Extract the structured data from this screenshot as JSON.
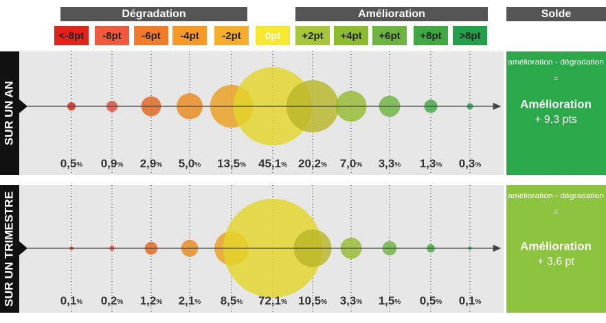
{
  "header": {
    "groups": [
      "Dégradation",
      "Amélioration",
      "Solde"
    ]
  },
  "categories": [
    "<-8pt",
    "-8pt",
    "-6pt",
    "-4pt",
    "-2pt",
    "0pt",
    "+2pt",
    "+4pt",
    "+6pt",
    "+8pt",
    ">8pt"
  ],
  "category_colors": [
    "#e2231a",
    "#ef5a3c",
    "#f07b2b",
    "#f59a24",
    "#f6ad2b",
    "#f6e82e",
    "#a8c63a",
    "#8dbb2f",
    "#6cb33f",
    "#3fa843",
    "#22a04b"
  ],
  "bubble_colors": [
    "#d4221b",
    "#e4493a",
    "#e0661f",
    "#e98a1c",
    "#e9a01f",
    "#e3d62a",
    "#b9b72a",
    "#95bb2f",
    "#6cb33f",
    "#3fa843",
    "#22a04b"
  ],
  "chart_data": [
    {
      "type": "bubble",
      "title": "SUR UN AN",
      "values": [
        0.5,
        0.9,
        2.9,
        5.0,
        13.5,
        45.1,
        20.2,
        7.0,
        3.3,
        1.3,
        0.3
      ],
      "value_labels": [
        "0,5%",
        "0,9%",
        "2,9%",
        "5,0%",
        "13,5%",
        "45,1%",
        "20,2%",
        "7,0%",
        "3,3%",
        "1,3%",
        "0,3%"
      ],
      "balance": {
        "formula": "amélioration - dégradation",
        "equals": "=",
        "verdict": "Amélioration",
        "amount": "+ 9,3 pts",
        "color": "#2aa84a"
      }
    },
    {
      "type": "bubble",
      "title": "SUR UN TRIMESTRE",
      "values": [
        0.1,
        0.2,
        1.2,
        2.1,
        8.5,
        72.1,
        10.5,
        3.3,
        1.5,
        0.5,
        0.1
      ],
      "value_labels": [
        "0,1%",
        "0,2%",
        "1,2%",
        "2,1%",
        "8,5%",
        "72,1%",
        "10,5%",
        "3,3%",
        "1,5%",
        "0,5%",
        "0,1%"
      ],
      "balance": {
        "formula": "amélioration - dégradation",
        "equals": "=",
        "verdict": "Amélioration",
        "amount": "+ 3,6 pt",
        "color": "#8cc43f"
      }
    }
  ]
}
